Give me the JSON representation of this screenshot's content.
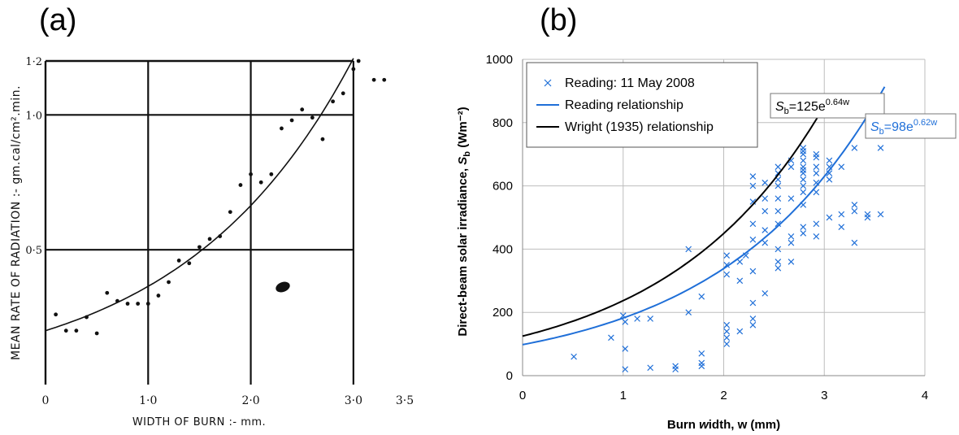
{
  "panels": {
    "a_label": "(a)",
    "b_label": "(b)"
  },
  "chart_data": [
    {
      "id": "a",
      "type": "scatter",
      "ylabel": "MEAN RATE OF RADIATION :- gm.cal/cm².min.",
      "xlabel": "WIDTH OF BURN :- mm.",
      "xlim": [
        0,
        3.5
      ],
      "ylim": [
        0,
        1.2
      ],
      "xticks": [
        {
          "v": 0,
          "label": "0"
        },
        {
          "v": 1.0,
          "label": "1·0"
        },
        {
          "v": 2.0,
          "label": "2·0"
        },
        {
          "v": 3.0,
          "label": "3·0"
        },
        {
          "v": 3.5,
          "label": "3·5"
        }
      ],
      "yticks": [
        {
          "v": 0.5,
          "label": "0·5"
        },
        {
          "v": 1.0,
          "label": "1·0"
        },
        {
          "v": 1.2,
          "label": "1·2"
        }
      ],
      "grid": true,
      "series": [
        {
          "marker": "dot",
          "points": [
            [
              0.1,
              0.26
            ],
            [
              0.2,
              0.2
            ],
            [
              0.3,
              0.2
            ],
            [
              0.4,
              0.25
            ],
            [
              0.5,
              0.19
            ],
            [
              0.6,
              0.34
            ],
            [
              0.7,
              0.31
            ],
            [
              0.8,
              0.3
            ],
            [
              0.9,
              0.3
            ],
            [
              1.0,
              0.3
            ],
            [
              1.1,
              0.33
            ],
            [
              1.2,
              0.38
            ],
            [
              1.3,
              0.46
            ],
            [
              1.4,
              0.45
            ],
            [
              1.5,
              0.51
            ],
            [
              1.6,
              0.54
            ],
            [
              1.7,
              0.55
            ],
            [
              1.8,
              0.64
            ],
            [
              1.9,
              0.74
            ],
            [
              2.0,
              0.78
            ],
            [
              2.1,
              0.75
            ],
            [
              2.2,
              0.78
            ],
            [
              2.3,
              0.95
            ],
            [
              2.4,
              0.98
            ],
            [
              2.5,
              1.02
            ],
            [
              2.6,
              0.99
            ],
            [
              2.7,
              0.91
            ],
            [
              2.8,
              1.05
            ],
            [
              2.9,
              1.08
            ],
            [
              3.0,
              1.17
            ],
            [
              3.05,
              1.2
            ],
            [
              3.2,
              1.13
            ],
            [
              3.3,
              1.13
            ]
          ]
        },
        {
          "marker": "line",
          "fit": {
            "form": "exp",
            "a": 0.2,
            "b": 0.6,
            "x_from": 0,
            "x_to": 3.0
          }
        }
      ]
    },
    {
      "id": "b",
      "type": "scatter",
      "xlabel": "Burn width, w (mm)",
      "ylabel": "Direct-beam solar irradiance, Sb (Wm⁻²)",
      "xlim": [
        0,
        4
      ],
      "ylim": [
        0,
        1000
      ],
      "xticks": [
        0,
        1,
        2,
        3,
        4
      ],
      "yticks": [
        0,
        200,
        400,
        600,
        800,
        1000
      ],
      "grid": true,
      "legend_position": "top-left",
      "colors": {
        "reading": "#1f6fd8",
        "wright": "#000000",
        "grid": "#bdbdbd"
      },
      "legend": [
        {
          "marker": "x",
          "label": "Reading: 11 May 2008"
        },
        {
          "marker": "line-blue",
          "label": "Reading relationship"
        },
        {
          "marker": "line-black",
          "label": "Wright (1935) relationship"
        }
      ],
      "annotations": {
        "wright_eq": {
          "base": "S",
          "sub": "b",
          "mid": "=125e",
          "sup": "0.64w"
        },
        "reading_eq": {
          "base": "S",
          "sub": "b",
          "mid": "=98e",
          "sup": "0.62w"
        }
      },
      "series": [
        {
          "name": "Reading: 11 May 2008",
          "marker": "x",
          "points": [
            [
              0.51,
              60
            ],
            [
              0.88,
              120
            ],
            [
              1.0,
              190
            ],
            [
              1.02,
              170
            ],
            [
              1.02,
              85
            ],
            [
              1.02,
              20
            ],
            [
              1.14,
              180
            ],
            [
              1.27,
              180
            ],
            [
              1.27,
              25
            ],
            [
              1.52,
              30
            ],
            [
              1.52,
              20
            ],
            [
              1.65,
              200
            ],
            [
              1.65,
              400
            ],
            [
              1.78,
              250
            ],
            [
              1.78,
              70
            ],
            [
              1.78,
              40
            ],
            [
              1.78,
              30
            ],
            [
              2.03,
              100
            ],
            [
              2.03,
              120
            ],
            [
              2.03,
              140
            ],
            [
              2.03,
              160
            ],
            [
              2.03,
              320
            ],
            [
              2.03,
              350
            ],
            [
              2.03,
              380
            ],
            [
              2.16,
              140
            ],
            [
              2.16,
              300
            ],
            [
              2.16,
              360
            ],
            [
              2.22,
              380
            ],
            [
              2.29,
              160
            ],
            [
              2.29,
              180
            ],
            [
              2.29,
              230
            ],
            [
              2.29,
              330
            ],
            [
              2.29,
              430
            ],
            [
              2.29,
              480
            ],
            [
              2.29,
              550
            ],
            [
              2.29,
              600
            ],
            [
              2.29,
              630
            ],
            [
              2.41,
              260
            ],
            [
              2.41,
              420
            ],
            [
              2.41,
              460
            ],
            [
              2.41,
              520
            ],
            [
              2.41,
              560
            ],
            [
              2.41,
              610
            ],
            [
              2.54,
              340
            ],
            [
              2.54,
              360
            ],
            [
              2.54,
              400
            ],
            [
              2.54,
              480
            ],
            [
              2.54,
              520
            ],
            [
              2.54,
              560
            ],
            [
              2.54,
              600
            ],
            [
              2.54,
              620
            ],
            [
              2.54,
              640
            ],
            [
              2.54,
              660
            ],
            [
              2.67,
              360
            ],
            [
              2.67,
              420
            ],
            [
              2.67,
              440
            ],
            [
              2.67,
              560
            ],
            [
              2.67,
              660
            ],
            [
              2.67,
              680
            ],
            [
              2.79,
              450
            ],
            [
              2.79,
              470
            ],
            [
              2.79,
              540
            ],
            [
              2.79,
              580
            ],
            [
              2.79,
              600
            ],
            [
              2.79,
              620
            ],
            [
              2.79,
              640
            ],
            [
              2.79,
              650
            ],
            [
              2.79,
              660
            ],
            [
              2.79,
              680
            ],
            [
              2.79,
              700
            ],
            [
              2.79,
              710
            ],
            [
              2.79,
              720
            ],
            [
              2.92,
              440
            ],
            [
              2.92,
              480
            ],
            [
              2.92,
              580
            ],
            [
              2.92,
              610
            ],
            [
              2.92,
              640
            ],
            [
              2.92,
              660
            ],
            [
              2.92,
              690
            ],
            [
              2.92,
              700
            ],
            [
              3.05,
              500
            ],
            [
              3.05,
              620
            ],
            [
              3.05,
              640
            ],
            [
              3.05,
              660
            ],
            [
              3.05,
              680
            ],
            [
              3.17,
              470
            ],
            [
              3.17,
              510
            ],
            [
              3.17,
              660
            ],
            [
              3.3,
              420
            ],
            [
              3.3,
              520
            ],
            [
              3.3,
              540
            ],
            [
              3.3,
              720
            ],
            [
              3.43,
              500
            ],
            [
              3.43,
              510
            ],
            [
              3.56,
              510
            ],
            [
              3.56,
              720
            ]
          ]
        },
        {
          "name": "Reading relationship",
          "marker": "line",
          "fit": {
            "form": "exp",
            "a": 98,
            "b": 0.62,
            "x_from": 0,
            "x_to": 3.6
          }
        },
        {
          "name": "Wright (1935) relationship",
          "marker": "line",
          "fit": {
            "form": "exp",
            "a": 125,
            "b": 0.64,
            "x_from": 0,
            "x_to": 3.0
          }
        }
      ]
    }
  ]
}
